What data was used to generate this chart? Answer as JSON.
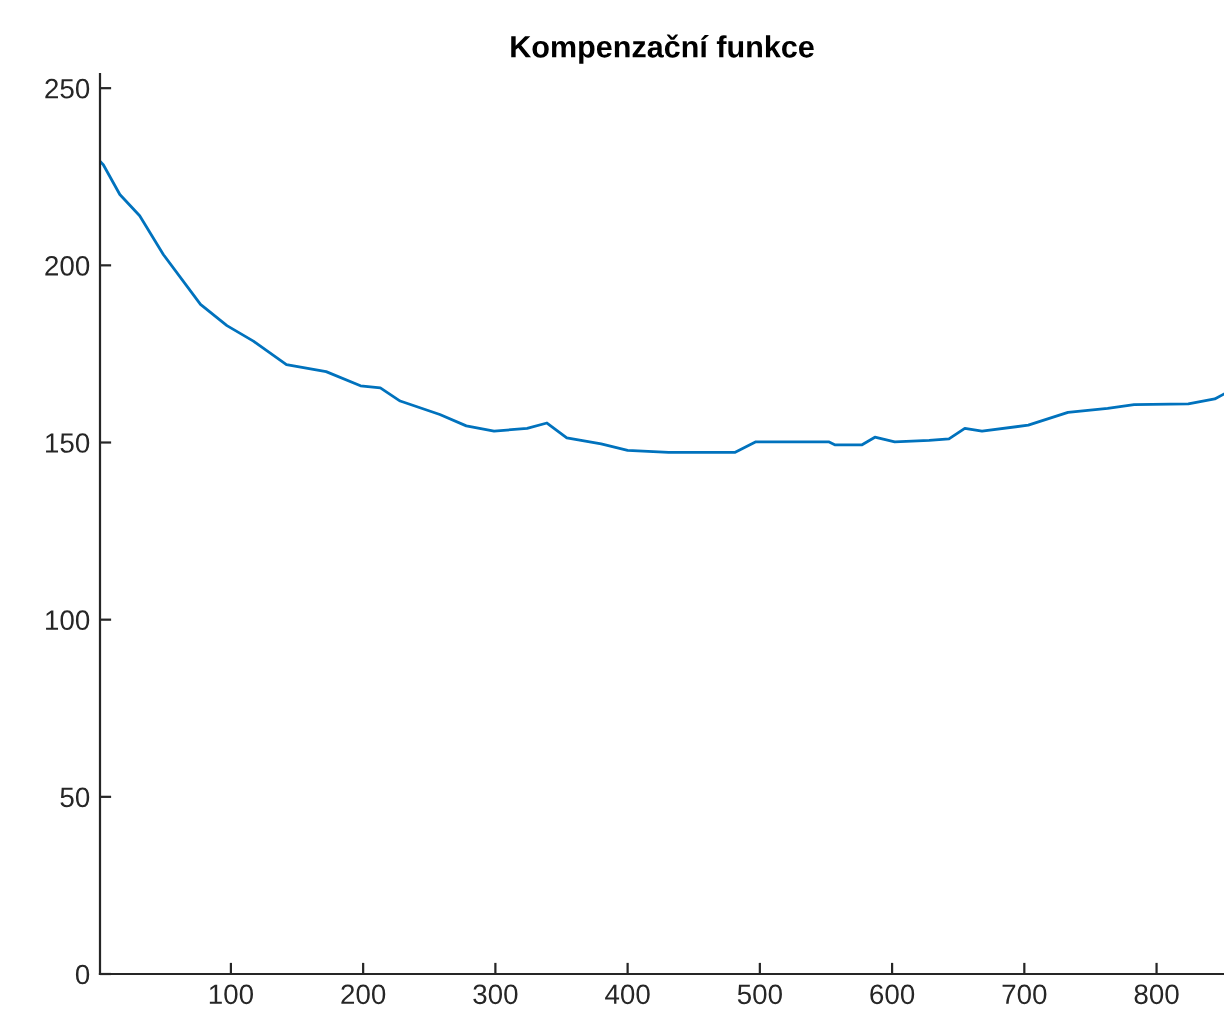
{
  "chart_data": {
    "type": "line",
    "title": "Kompenzační funkce",
    "x": [
      2,
      3.5,
      16,
      31,
      49,
      77,
      97,
      117,
      142,
      172,
      198,
      213,
      228,
      258,
      278,
      299,
      324,
      339,
      354,
      380,
      400,
      431,
      481,
      497,
      552,
      557,
      577,
      587,
      602,
      628,
      643,
      655,
      668,
      703,
      733,
      763,
      783,
      824,
      844,
      851
    ],
    "series": [
      {
        "color": "#0072bd",
        "values": [
          229,
          228.4,
          220,
          214,
          203,
          189,
          183,
          178.6,
          172,
          170,
          166,
          165.4,
          161.7,
          157.9,
          154.7,
          153.2,
          154,
          155.5,
          151.3,
          149.6,
          147.8,
          147.2,
          147.2,
          150.2,
          150.2,
          149.3,
          149.3,
          151.5,
          150.2,
          150.6,
          151,
          154,
          153.2,
          154.9,
          158.5,
          159.6,
          160.7,
          160.9,
          162.3,
          163.7
        ]
      }
    ],
    "xlim": [
      1,
      851
    ],
    "ylim": [
      0,
      254
    ],
    "xticks": [
      100,
      200,
      300,
      400,
      500,
      600,
      700,
      800
    ],
    "yticks": [
      0,
      50,
      100,
      150,
      200,
      250
    ],
    "grid": false,
    "legend": false,
    "marker": "none",
    "line_style": "solid"
  }
}
